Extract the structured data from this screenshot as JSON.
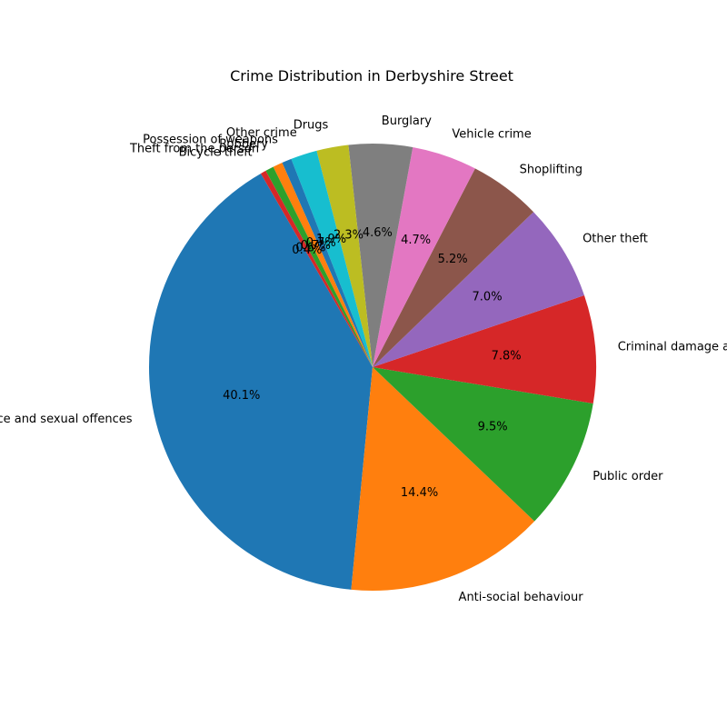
{
  "chart_data": {
    "type": "pie",
    "title": "Crime Distribution in Derbyshire Street",
    "start_angle_deg": 120,
    "direction": "counterclockwise",
    "label_format": "{pct}%",
    "slices": [
      {
        "label": "Violence and sexual offences",
        "value": 40.1,
        "color": "#1f77b4"
      },
      {
        "label": "Anti-social behaviour",
        "value": 14.4,
        "color": "#ff7f0e"
      },
      {
        "label": "Public order",
        "value": 9.5,
        "color": "#2ca02c"
      },
      {
        "label": "Criminal damage and arson",
        "value": 7.8,
        "color": "#d62728"
      },
      {
        "label": "Other theft",
        "value": 7.0,
        "color": "#9467bd"
      },
      {
        "label": "Shoplifting",
        "value": 5.2,
        "color": "#8c564b"
      },
      {
        "label": "Vehicle crime",
        "value": 4.7,
        "color": "#e377c2"
      },
      {
        "label": "Burglary",
        "value": 4.6,
        "color": "#7f7f7f"
      },
      {
        "label": "Drugs",
        "value": 2.3,
        "color": "#bcbd22"
      },
      {
        "label": "Other crime",
        "value": 1.9,
        "color": "#17becf"
      },
      {
        "label": "Possession of weapons",
        "value": 0.7,
        "color": "#1f77b4"
      },
      {
        "label": "Robbery",
        "value": 0.7,
        "color": "#ff7f0e"
      },
      {
        "label": "Theft from the person",
        "value": 0.6,
        "color": "#2ca02c"
      },
      {
        "label": "Bicycle theft",
        "value": 0.4,
        "color": "#d62728"
      }
    ]
  }
}
